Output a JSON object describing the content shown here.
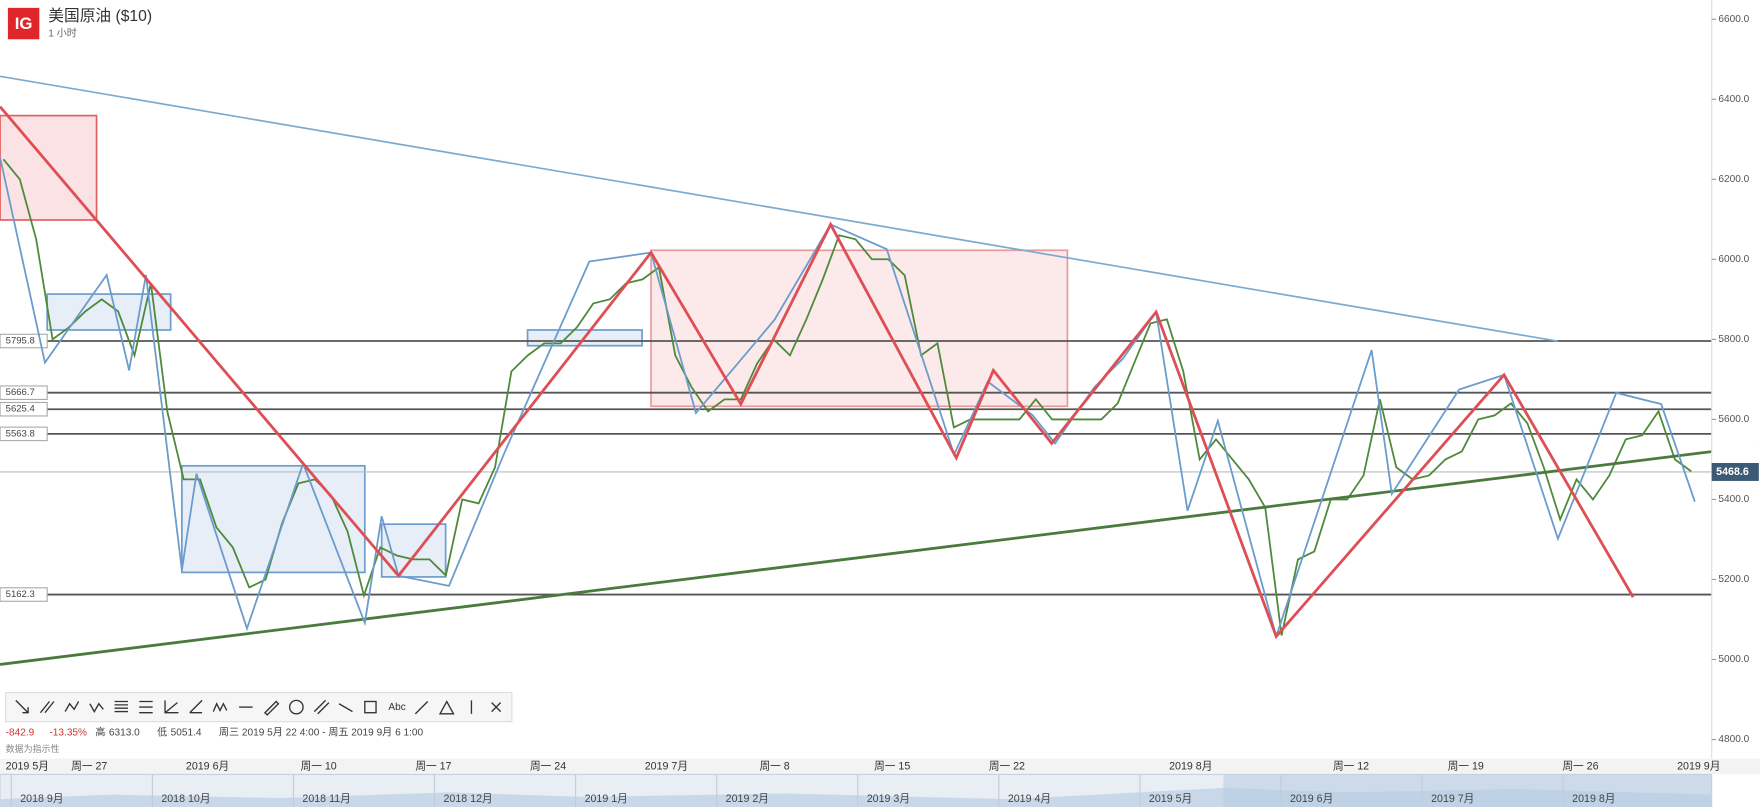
{
  "header": {
    "logo": "IG",
    "title": "美国原油 ($10)",
    "interval": "1 小时"
  },
  "chart_data": {
    "type": "line",
    "color": "#4f8a3a",
    "categories": [
      "2019 5月",
      null,
      null,
      null,
      "周一 27",
      null,
      null,
      null,
      null,
      null,
      null,
      "2019 6月",
      null,
      null,
      null,
      null,
      null,
      null,
      "周一 10",
      null,
      null,
      null,
      null,
      null,
      null,
      "周一 17",
      null,
      null,
      null,
      null,
      null,
      null,
      "周一 24",
      null,
      null,
      null,
      null,
      null,
      null,
      "2019 7月",
      null,
      null,
      null,
      null,
      null,
      null,
      "周一 8",
      null,
      null,
      null,
      null,
      null,
      null,
      "周一 15",
      null,
      null,
      null,
      null,
      null,
      null,
      "周一 22",
      null,
      null,
      null,
      null,
      null,
      null,
      null,
      null,
      null,
      null,
      "2019 8月",
      null,
      null,
      null,
      null,
      null,
      null,
      null,
      null,
      null,
      "周一 12",
      null,
      null,
      null,
      null,
      null,
      null,
      "周一 19",
      null,
      null,
      null,
      null,
      null,
      null,
      "周一 26",
      null,
      null,
      null,
      null,
      null,
      null,
      "2019 9月",
      null
    ],
    "values": [
      6250,
      6200,
      6050,
      5800,
      5830,
      5870,
      5900,
      5870,
      5760,
      5940,
      5620,
      5450,
      5450,
      5330,
      5280,
      5180,
      5200,
      5340,
      5440,
      5450,
      5410,
      5320,
      5160,
      5280,
      5260,
      5250,
      5250,
      5210,
      5400,
      5390,
      5480,
      5720,
      5760,
      5790,
      5790,
      5830,
      5890,
      5900,
      5940,
      5950,
      5980,
      5760,
      5680,
      5620,
      5650,
      5650,
      5740,
      5800,
      5760,
      5850,
      5950,
      6060,
      6050,
      6000,
      6000,
      5960,
      5760,
      5790,
      5580,
      5600,
      5600,
      5600,
      5600,
      5650,
      5600,
      5600,
      5600,
      5600,
      5640,
      5740,
      5840,
      5850,
      5720,
      5500,
      5550,
      5500,
      5450,
      5380,
      5060,
      5250,
      5270,
      5400,
      5400,
      5460,
      5650,
      5480,
      5450,
      5460,
      5500,
      5520,
      5600,
      5610,
      5640,
      5590,
      5480,
      5350,
      5450,
      5400,
      5460,
      5550,
      5560,
      5620,
      5500,
      5470
    ],
    "ylim": [
      4752,
      6648
    ],
    "yticks": [
      {
        "value": 4800,
        "label": "4800.0"
      },
      {
        "value": 5000,
        "label": "5000.0"
      },
      {
        "value": 5200,
        "label": "5200.0"
      },
      {
        "value": 5400,
        "label": "5400.0"
      },
      {
        "value": 5600,
        "label": "5600.0"
      },
      {
        "value": 5800,
        "label": "5800.0"
      },
      {
        "value": 6000,
        "label": "6000.0"
      },
      {
        "value": 6200,
        "label": "6200.0"
      },
      {
        "value": 6400,
        "label": "6400.0"
      },
      {
        "value": 6600,
        "label": "6600.0"
      }
    ],
    "levels": [
      5795.8,
      5666.7,
      5625.4,
      5563.8,
      5162.3
    ],
    "last_price": 5468.6,
    "x_grid": true
  },
  "stats": {
    "change": "-842.9",
    "change_pct": "-13.35%",
    "high_label": "高",
    "high": "6313.0",
    "low_label": "低",
    "low": "5051.4",
    "range": "周三 2019 5月 22 4:00 - 周五 2019 9月 6 1:00",
    "note": "数据为指示性"
  },
  "toolbar": {
    "text_tool": "Abc"
  },
  "navigator": {
    "labels": [
      "2018 9月",
      "2018 10月",
      "2018 11月",
      "2018 12月",
      "2019 1月",
      "2019 2月",
      "2019 3月",
      "2019 4月",
      "2019 5月",
      "2019 6月",
      "2019 7月",
      "2019 8月"
    ]
  }
}
